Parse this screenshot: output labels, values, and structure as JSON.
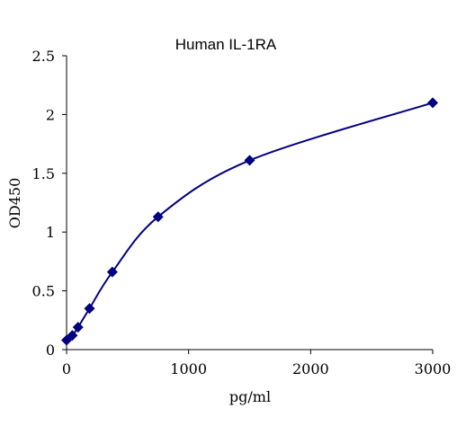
{
  "chart_data": {
    "type": "scatter",
    "title": "Human   IL-1RA",
    "xlabel": "pg/ml",
    "ylabel": "OD450",
    "xlim": [
      0,
      3000
    ],
    "ylim": [
      0,
      2.5
    ],
    "x_ticks": [
      0,
      1000,
      2000,
      3000
    ],
    "x_tick_labels": [
      "0",
      "1000",
      "2000",
      "3000"
    ],
    "y_ticks": [
      0,
      0.5,
      1,
      1.5,
      2,
      2.5
    ],
    "y_tick_labels": [
      "0",
      "0.5",
      "1",
      "1.5",
      "2",
      "2.5"
    ],
    "grid": false,
    "legend": "none",
    "series": [
      {
        "x": [
          0,
          47,
          94,
          188,
          375,
          750,
          1500,
          3000
        ],
        "y": [
          0.08,
          0.12,
          0.19,
          0.35,
          0.66,
          1.13,
          1.61,
          2.1
        ]
      }
    ],
    "fit_curve": "smooth",
    "colors": {
      "series": "#000080",
      "axes": "#000000"
    }
  }
}
